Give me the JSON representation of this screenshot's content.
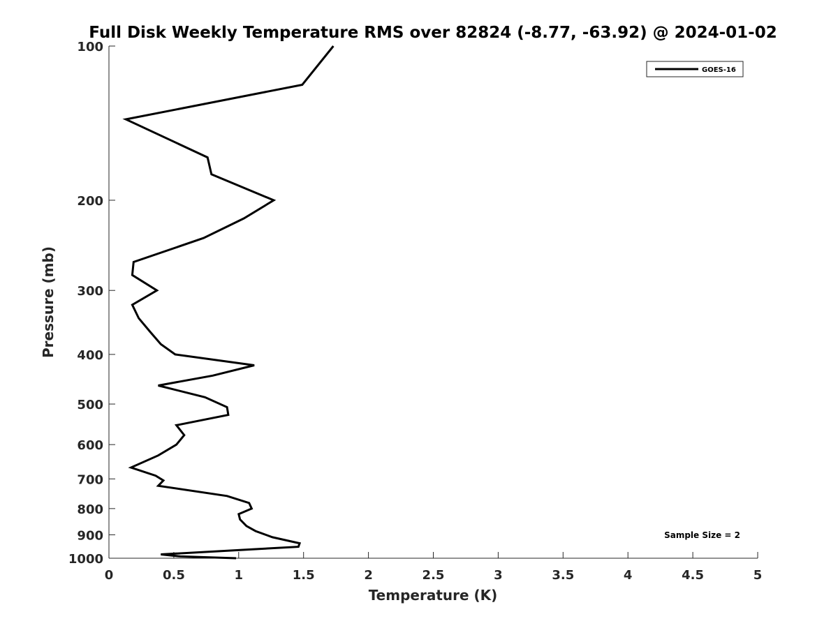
{
  "chart_data": {
    "type": "line",
    "title": "Full Disk Weekly Temperature RMS over 82824 (-8.77, -63.92) @ 2024-01-02",
    "xlabel": "Temperature (K)",
    "ylabel": "Pressure (mb)",
    "xlim": [
      0,
      5
    ],
    "ylim": [
      100,
      1000
    ],
    "y_scale": "log",
    "y_reversed": true,
    "x_ticks": [
      "0",
      "0.5",
      "1",
      "1.5",
      "2",
      "2.5",
      "3",
      "3.5",
      "4",
      "4.5",
      "5"
    ],
    "y_ticks": [
      "100",
      "200",
      "300",
      "400",
      "500",
      "600",
      "700",
      "800",
      "900",
      "1000"
    ],
    "grid": false,
    "legend_position": "top-right",
    "annotation": "Sample Size = 2",
    "annotation_position": "bottom-right",
    "series": [
      {
        "name": "GOES-16",
        "color": "#000000",
        "x": [
          1.73,
          1.49,
          0.13,
          0.76,
          0.79,
          1.27,
          1.04,
          0.73,
          0.19,
          0.18,
          0.37,
          0.18,
          0.23,
          0.32,
          0.4,
          0.51,
          1.12,
          0.8,
          0.38,
          0.74,
          0.91,
          0.92,
          0.52,
          0.58,
          0.52,
          0.38,
          0.17,
          0.36,
          0.42,
          0.38,
          0.91,
          1.08,
          1.1,
          1.0,
          1.01,
          1.06,
          1.13,
          1.26,
          1.47,
          1.46,
          1.13,
          0.4,
          0.55,
          0.98
        ],
        "y": [
          100,
          119,
          139,
          165,
          178,
          200,
          217,
          237,
          264,
          280,
          300,
          320,
          340,
          362,
          382,
          400,
          420,
          440,
          460,
          485,
          507,
          525,
          550,
          575,
          600,
          630,
          665,
          690,
          705,
          722,
          756,
          780,
          800,
          820,
          840,
          865,
          885,
          910,
          935,
          950,
          960,
          983,
          992,
          1000
        ]
      }
    ]
  }
}
